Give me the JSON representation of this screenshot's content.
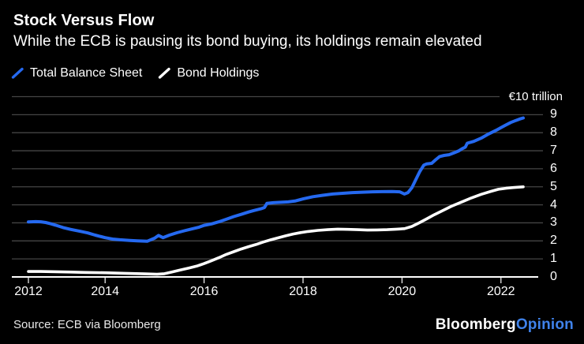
{
  "header": {
    "title": "Stock Versus Flow",
    "subtitle": "While the ECB is pausing its bond buying, its holdings remain elevated"
  },
  "legend": {
    "items": [
      {
        "label": "Total Balance Sheet",
        "color": "#2569f0"
      },
      {
        "label": "Bond Holdings",
        "color": "#ffffff"
      }
    ]
  },
  "footer": {
    "source": "Source: ECB via Bloomberg",
    "logo": {
      "part1": "Bloomberg",
      "part2": "Opinion",
      "part2_color": "#3f82ea"
    }
  },
  "colors": {
    "background": "#000000",
    "gridline": "#454545",
    "axis_line": "#ffffff",
    "blue_line": "#2569f0",
    "white_line": "#ffffff",
    "opinion_blue": "#3f82ea"
  },
  "chart_data": {
    "type": "line",
    "title": "Stock Versus Flow",
    "subtitle": "While the ECB is pausing its bond buying, its holdings remain elevated",
    "unit_label": "€10 trillion",
    "xlabel": "",
    "ylabel": "€ trillion",
    "xlim": [
      2012.45,
      2022.45
    ],
    "ylim": [
      0,
      10
    ],
    "grid": true,
    "legend_position": "top-left",
    "x_ticks": {
      "labels": [
        "2012",
        "2014",
        "2016",
        "2018",
        "2020",
        "2022"
      ],
      "years": [
        2012.45,
        2014,
        2016,
        2018,
        2020,
        2022
      ]
    },
    "y_ticks": [
      0,
      1,
      2,
      3,
      4,
      5,
      6,
      7,
      8,
      9
    ],
    "series": [
      {
        "name": "Total Balance Sheet",
        "color": "#2569f0",
        "points": [
          [
            2012.45,
            3.05
          ],
          [
            2012.6,
            3.07
          ],
          [
            2012.7,
            3.06
          ],
          [
            2012.8,
            3.02
          ],
          [
            2012.9,
            2.95
          ],
          [
            2013.0,
            2.87
          ],
          [
            2013.15,
            2.74
          ],
          [
            2013.3,
            2.64
          ],
          [
            2013.5,
            2.53
          ],
          [
            2013.65,
            2.44
          ],
          [
            2013.8,
            2.32
          ],
          [
            2014.0,
            2.18
          ],
          [
            2014.15,
            2.1
          ],
          [
            2014.3,
            2.06
          ],
          [
            2014.5,
            2.02
          ],
          [
            2014.65,
            2.0
          ],
          [
            2014.85,
            1.98
          ],
          [
            2015.0,
            2.15
          ],
          [
            2015.08,
            2.3
          ],
          [
            2015.17,
            2.18
          ],
          [
            2015.3,
            2.32
          ],
          [
            2015.45,
            2.45
          ],
          [
            2015.6,
            2.56
          ],
          [
            2015.75,
            2.66
          ],
          [
            2015.9,
            2.76
          ],
          [
            2016.0,
            2.86
          ],
          [
            2016.15,
            2.94
          ],
          [
            2016.3,
            3.06
          ],
          [
            2016.45,
            3.2
          ],
          [
            2016.6,
            3.35
          ],
          [
            2016.75,
            3.47
          ],
          [
            2016.9,
            3.6
          ],
          [
            2017.0,
            3.68
          ],
          [
            2017.15,
            3.78
          ],
          [
            2017.22,
            3.85
          ],
          [
            2017.27,
            4.08
          ],
          [
            2017.4,
            4.12
          ],
          [
            2017.55,
            4.14
          ],
          [
            2017.7,
            4.16
          ],
          [
            2017.85,
            4.22
          ],
          [
            2018.0,
            4.33
          ],
          [
            2018.2,
            4.45
          ],
          [
            2018.4,
            4.53
          ],
          [
            2018.6,
            4.6
          ],
          [
            2018.8,
            4.64
          ],
          [
            2019.0,
            4.68
          ],
          [
            2019.2,
            4.7
          ],
          [
            2019.4,
            4.72
          ],
          [
            2019.6,
            4.73
          ],
          [
            2019.8,
            4.74
          ],
          [
            2019.95,
            4.72
          ],
          [
            2020.05,
            4.6
          ],
          [
            2020.12,
            4.68
          ],
          [
            2020.2,
            4.95
          ],
          [
            2020.28,
            5.4
          ],
          [
            2020.36,
            5.85
          ],
          [
            2020.44,
            6.2
          ],
          [
            2020.5,
            6.27
          ],
          [
            2020.6,
            6.3
          ],
          [
            2020.68,
            6.5
          ],
          [
            2020.76,
            6.68
          ],
          [
            2020.85,
            6.74
          ],
          [
            2020.95,
            6.78
          ],
          [
            2021.05,
            6.88
          ],
          [
            2021.15,
            7.0
          ],
          [
            2021.22,
            7.12
          ],
          [
            2021.28,
            7.2
          ],
          [
            2021.32,
            7.42
          ],
          [
            2021.45,
            7.52
          ],
          [
            2021.6,
            7.7
          ],
          [
            2021.75,
            7.93
          ],
          [
            2021.9,
            8.13
          ],
          [
            2022.0,
            8.28
          ],
          [
            2022.1,
            8.43
          ],
          [
            2022.2,
            8.57
          ],
          [
            2022.3,
            8.68
          ],
          [
            2022.4,
            8.78
          ],
          [
            2022.45,
            8.82
          ]
        ]
      },
      {
        "name": "Bond Holdings",
        "color": "#ffffff",
        "points": [
          [
            2012.45,
            0.3
          ],
          [
            2012.7,
            0.3
          ],
          [
            2013.0,
            0.29
          ],
          [
            2013.3,
            0.27
          ],
          [
            2013.6,
            0.25
          ],
          [
            2014.0,
            0.23
          ],
          [
            2014.4,
            0.2
          ],
          [
            2014.8,
            0.17
          ],
          [
            2015.05,
            0.15
          ],
          [
            2015.2,
            0.18
          ],
          [
            2015.35,
            0.27
          ],
          [
            2015.5,
            0.37
          ],
          [
            2015.7,
            0.5
          ],
          [
            2015.85,
            0.6
          ],
          [
            2016.0,
            0.74
          ],
          [
            2016.15,
            0.9
          ],
          [
            2016.3,
            1.07
          ],
          [
            2016.45,
            1.25
          ],
          [
            2016.6,
            1.4
          ],
          [
            2016.75,
            1.55
          ],
          [
            2016.9,
            1.68
          ],
          [
            2017.05,
            1.8
          ],
          [
            2017.2,
            1.94
          ],
          [
            2017.35,
            2.06
          ],
          [
            2017.5,
            2.17
          ],
          [
            2017.65,
            2.28
          ],
          [
            2017.8,
            2.38
          ],
          [
            2017.95,
            2.46
          ],
          [
            2018.1,
            2.52
          ],
          [
            2018.3,
            2.58
          ],
          [
            2018.5,
            2.62
          ],
          [
            2018.7,
            2.65
          ],
          [
            2018.9,
            2.64
          ],
          [
            2019.1,
            2.62
          ],
          [
            2019.3,
            2.6
          ],
          [
            2019.5,
            2.61
          ],
          [
            2019.7,
            2.62
          ],
          [
            2019.9,
            2.65
          ],
          [
            2020.05,
            2.68
          ],
          [
            2020.2,
            2.8
          ],
          [
            2020.35,
            3.0
          ],
          [
            2020.5,
            3.22
          ],
          [
            2020.65,
            3.45
          ],
          [
            2020.8,
            3.65
          ],
          [
            2021.0,
            3.92
          ],
          [
            2021.2,
            4.15
          ],
          [
            2021.4,
            4.38
          ],
          [
            2021.6,
            4.58
          ],
          [
            2021.8,
            4.75
          ],
          [
            2021.95,
            4.86
          ],
          [
            2022.1,
            4.92
          ],
          [
            2022.25,
            4.96
          ],
          [
            2022.45,
            5.0
          ]
        ]
      }
    ]
  }
}
